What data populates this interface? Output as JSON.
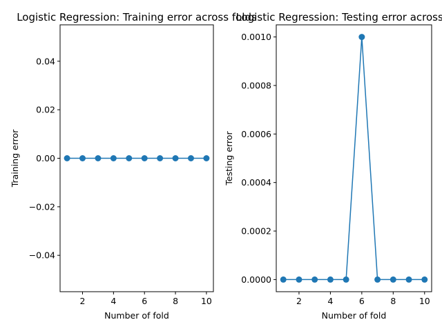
{
  "colors": {
    "series": "#1f77b4"
  },
  "chart_data": [
    {
      "type": "line",
      "title": "Logistic Regression: Training error across folds",
      "xlabel": "Number of fold",
      "ylabel": "Training error",
      "x": [
        1,
        2,
        3,
        4,
        5,
        6,
        7,
        8,
        9,
        10
      ],
      "series": [
        {
          "values": [
            0,
            0,
            0,
            0,
            0,
            0,
            0,
            0,
            0,
            0
          ]
        }
      ],
      "xlim": [
        0.55,
        10.45
      ],
      "ylim": [
        -0.055,
        0.055
      ],
      "xticks": [
        2,
        4,
        6,
        8,
        10
      ],
      "yticks": [
        -0.04,
        -0.02,
        0.0,
        0.02,
        0.04
      ],
      "ytick_labels": [
        "−0.04",
        "−0.02",
        "0.00",
        "0.02",
        "0.04"
      ],
      "markers": true,
      "grid": false
    },
    {
      "type": "line",
      "title": "Logistic Regression: Testing error across folds",
      "xlabel": "Number of fold",
      "ylabel": "Testing error",
      "x": [
        1,
        2,
        3,
        4,
        5,
        6,
        7,
        8,
        9,
        10
      ],
      "series": [
        {
          "values": [
            0,
            0,
            0,
            0,
            0,
            0.001,
            0,
            0,
            0,
            0
          ]
        }
      ],
      "xlim": [
        0.55,
        10.45
      ],
      "ylim": [
        -5e-05,
        0.00105
      ],
      "xticks": [
        2,
        4,
        6,
        8,
        10
      ],
      "yticks": [
        0.0,
        0.0002,
        0.0004,
        0.0006,
        0.0008,
        0.001
      ],
      "ytick_labels": [
        "0.0000",
        "0.0002",
        "0.0004",
        "0.0006",
        "0.0008",
        "0.0010"
      ],
      "markers": true,
      "grid": false
    }
  ]
}
